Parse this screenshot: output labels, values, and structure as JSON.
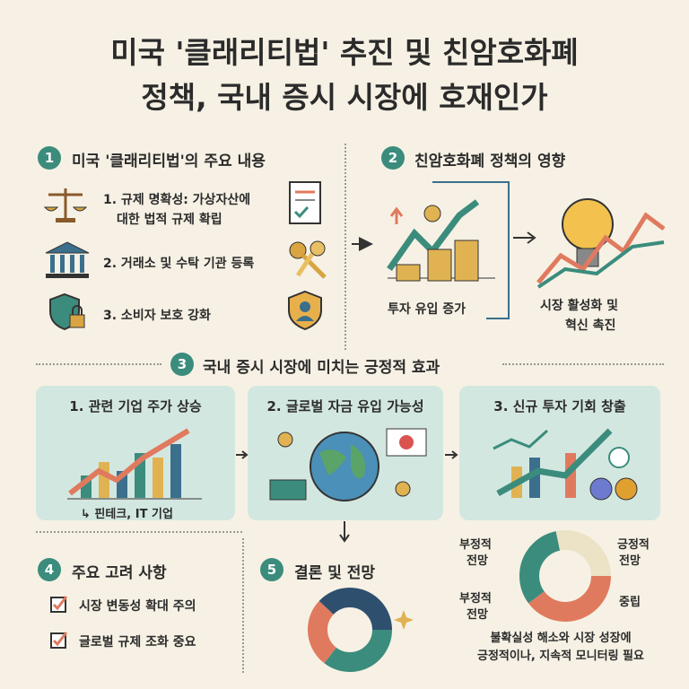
{
  "header": {
    "title_lines": [
      "미국 '클래리티법' 추진 및 친암호화폐",
      "정책, 국내 증시 시장에 호재인가"
    ]
  },
  "sections": [
    {
      "number": "1",
      "title": "미국 '클래리티법'의 주요 내용",
      "items": [
        {
          "lines": [
            "1. 규제 명확성: 가상자산에",
            "대한 법적 규제 확립"
          ]
        },
        {
          "lines": [
            "2. 거래소 및 수탁 기관 등록"
          ]
        },
        {
          "lines": [
            "3. 소비자 보호 강화"
          ]
        }
      ]
    },
    {
      "number": "2",
      "title": "친암호화폐 정책의 영향",
      "panels": [
        {
          "lines": [
            "투자 유입 증가"
          ]
        },
        {
          "lines": [
            "시장 활성화 및",
            "혁신 촉진"
          ]
        }
      ]
    },
    {
      "number": "3",
      "title": "국내 증시 시장에 미치는 긍정적 효과",
      "cards": [
        {
          "title": "1. 관련 기업 주가 상승",
          "note": "↳ 핀테크, IT 기업"
        },
        {
          "title": "2. 글로벌 자금 유입 가능성"
        },
        {
          "title": "3. 신규 투자 기회 창출"
        }
      ]
    },
    {
      "number": "4",
      "title": "주요 고려 사항",
      "items": [
        "시장 변동성 확대 주의",
        "글로벌 규제 조화 중요"
      ]
    },
    {
      "number": "5",
      "title": "결론 및 전망",
      "outlook": {
        "labels": [
          {
            "lines": [
              "부정적",
              "전망"
            ]
          },
          {
            "lines": [
              "긍정적",
              "전망"
            ]
          },
          {
            "lines": [
              "부정적",
              "전망"
            ]
          },
          {
            "lines": [
              "중립"
            ]
          }
        ],
        "caption": [
          "불확실성 해소와 시장 성장에",
          "긍정적이나, 지속적 모니터링 필요"
        ]
      }
    }
  ]
}
